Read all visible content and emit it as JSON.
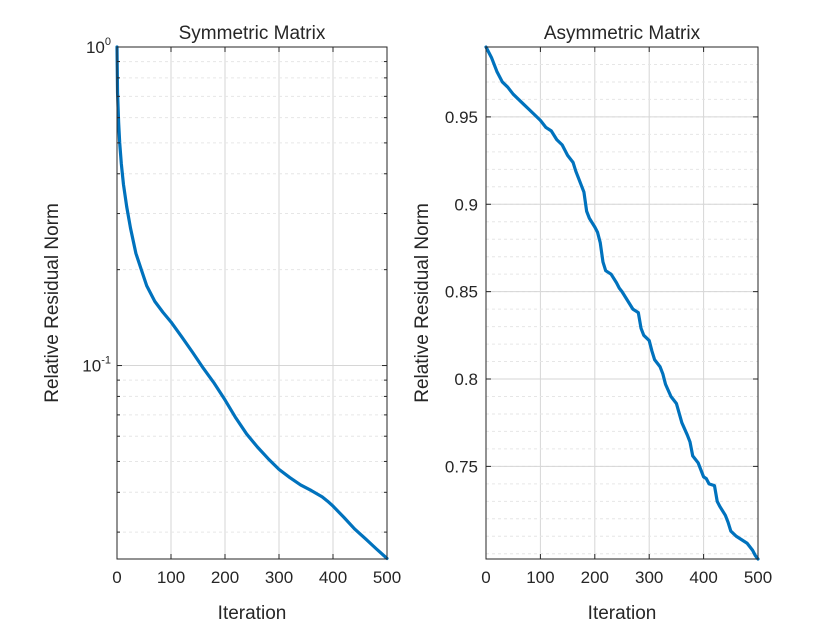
{
  "chart_data": [
    {
      "type": "line",
      "title": "Symmetric Matrix",
      "xlabel": "Iteration",
      "ylabel": "Relative Residual Norm",
      "yscale": "log",
      "xlim": [
        0,
        500
      ],
      "ylim": [
        0.0247,
        1.0
      ],
      "xticks": [
        "0",
        "100",
        "200",
        "300",
        "400",
        "500"
      ],
      "yticks": [
        {
          "base": "10",
          "exp": "0",
          "value": 1.0
        },
        {
          "base": "10",
          "exp": "-1",
          "value": 0.1
        }
      ],
      "grid": true,
      "color": "#0072BD",
      "series": [
        {
          "x": [
            0,
            1,
            3,
            5,
            8,
            12,
            18,
            25,
            35,
            45,
            55,
            70,
            85,
            100,
            120,
            140,
            160,
            180,
            200,
            220,
            240,
            260,
            280,
            300,
            320,
            340,
            360,
            380,
            390,
            400,
            420,
            440,
            460,
            480,
            500
          ],
          "y": [
            1.0,
            0.72,
            0.58,
            0.5,
            0.43,
            0.37,
            0.315,
            0.27,
            0.225,
            0.2,
            0.178,
            0.159,
            0.147,
            0.137,
            0.123,
            0.11,
            0.098,
            0.088,
            0.078,
            0.0685,
            0.061,
            0.0555,
            0.051,
            0.0472,
            0.0445,
            0.0422,
            0.0405,
            0.0387,
            0.0375,
            0.0362,
            0.0334,
            0.0307,
            0.0286,
            0.0266,
            0.0248
          ]
        }
      ]
    },
    {
      "type": "line",
      "title": "Asymmetric Matrix",
      "xlabel": "Iteration",
      "ylabel": "Relative Residual Norm",
      "yscale": "linear",
      "xlim": [
        0,
        500
      ],
      "ylim": [
        0.697,
        0.99
      ],
      "xticks": [
        "0",
        "100",
        "200",
        "300",
        "400",
        "500"
      ],
      "yticks": [
        "0.95",
        "0.9",
        "0.85",
        "0.8",
        "0.75"
      ],
      "grid": true,
      "color": "#0072BD",
      "series": [
        {
          "x": [
            0,
            10,
            20,
            30,
            40,
            50,
            60,
            70,
            80,
            90,
            100,
            110,
            120,
            130,
            140,
            150,
            160,
            165,
            170,
            180,
            185,
            190,
            200,
            205,
            210,
            215,
            220,
            230,
            240,
            245,
            250,
            260,
            270,
            280,
            285,
            290,
            300,
            305,
            310,
            320,
            325,
            330,
            340,
            350,
            360,
            370,
            375,
            380,
            390,
            400,
            405,
            410,
            420,
            425,
            430,
            440,
            445,
            450,
            460,
            470,
            480,
            485,
            490,
            495,
            500
          ],
          "y": [
            0.99,
            0.984,
            0.976,
            0.97,
            0.967,
            0.963,
            0.96,
            0.957,
            0.954,
            0.951,
            0.948,
            0.944,
            0.942,
            0.937,
            0.934,
            0.928,
            0.924,
            0.919,
            0.915,
            0.907,
            0.896,
            0.892,
            0.887,
            0.884,
            0.878,
            0.867,
            0.862,
            0.86,
            0.855,
            0.852,
            0.85,
            0.845,
            0.84,
            0.838,
            0.829,
            0.825,
            0.822,
            0.816,
            0.811,
            0.807,
            0.803,
            0.797,
            0.79,
            0.786,
            0.775,
            0.768,
            0.764,
            0.756,
            0.752,
            0.744,
            0.743,
            0.74,
            0.739,
            0.73,
            0.727,
            0.722,
            0.718,
            0.713,
            0.71,
            0.708,
            0.706,
            0.704,
            0.702,
            0.699,
            0.697
          ]
        }
      ]
    }
  ]
}
